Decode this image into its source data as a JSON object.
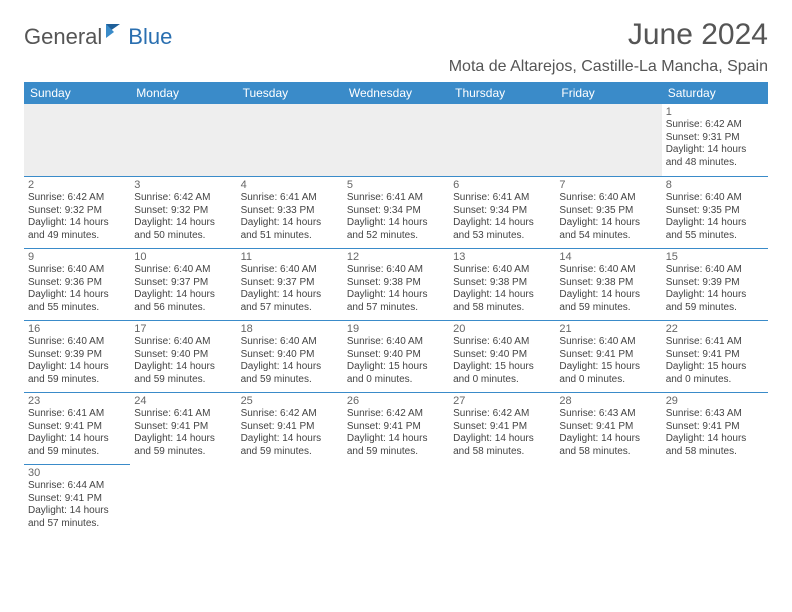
{
  "logo": {
    "general": "General",
    "blue": "Blue"
  },
  "title": "June 2024",
  "location": "Mota de Altarejos, Castille-La Mancha, Spain",
  "header_bg": "#3a8bc9",
  "header_fg": "#ffffff",
  "day_border": "#3a8bc9",
  "weekdays": [
    "Sunday",
    "Monday",
    "Tuesday",
    "Wednesday",
    "Thursday",
    "Friday",
    "Saturday"
  ],
  "days": {
    "1": {
      "sunrise": "6:42 AM",
      "sunset": "9:31 PM",
      "daylight": "14 hours and 48 minutes."
    },
    "2": {
      "sunrise": "6:42 AM",
      "sunset": "9:32 PM",
      "daylight": "14 hours and 49 minutes."
    },
    "3": {
      "sunrise": "6:42 AM",
      "sunset": "9:32 PM",
      "daylight": "14 hours and 50 minutes."
    },
    "4": {
      "sunrise": "6:41 AM",
      "sunset": "9:33 PM",
      "daylight": "14 hours and 51 minutes."
    },
    "5": {
      "sunrise": "6:41 AM",
      "sunset": "9:34 PM",
      "daylight": "14 hours and 52 minutes."
    },
    "6": {
      "sunrise": "6:41 AM",
      "sunset": "9:34 PM",
      "daylight": "14 hours and 53 minutes."
    },
    "7": {
      "sunrise": "6:40 AM",
      "sunset": "9:35 PM",
      "daylight": "14 hours and 54 minutes."
    },
    "8": {
      "sunrise": "6:40 AM",
      "sunset": "9:35 PM",
      "daylight": "14 hours and 55 minutes."
    },
    "9": {
      "sunrise": "6:40 AM",
      "sunset": "9:36 PM",
      "daylight": "14 hours and 55 minutes."
    },
    "10": {
      "sunrise": "6:40 AM",
      "sunset": "9:37 PM",
      "daylight": "14 hours and 56 minutes."
    },
    "11": {
      "sunrise": "6:40 AM",
      "sunset": "9:37 PM",
      "daylight": "14 hours and 57 minutes."
    },
    "12": {
      "sunrise": "6:40 AM",
      "sunset": "9:38 PM",
      "daylight": "14 hours and 57 minutes."
    },
    "13": {
      "sunrise": "6:40 AM",
      "sunset": "9:38 PM",
      "daylight": "14 hours and 58 minutes."
    },
    "14": {
      "sunrise": "6:40 AM",
      "sunset": "9:38 PM",
      "daylight": "14 hours and 59 minutes."
    },
    "15": {
      "sunrise": "6:40 AM",
      "sunset": "9:39 PM",
      "daylight": "14 hours and 59 minutes."
    },
    "16": {
      "sunrise": "6:40 AM",
      "sunset": "9:39 PM",
      "daylight": "14 hours and 59 minutes."
    },
    "17": {
      "sunrise": "6:40 AM",
      "sunset": "9:40 PM",
      "daylight": "14 hours and 59 minutes."
    },
    "18": {
      "sunrise": "6:40 AM",
      "sunset": "9:40 PM",
      "daylight": "14 hours and 59 minutes."
    },
    "19": {
      "sunrise": "6:40 AM",
      "sunset": "9:40 PM",
      "daylight": "15 hours and 0 minutes."
    },
    "20": {
      "sunrise": "6:40 AM",
      "sunset": "9:40 PM",
      "daylight": "15 hours and 0 minutes."
    },
    "21": {
      "sunrise": "6:40 AM",
      "sunset": "9:41 PM",
      "daylight": "15 hours and 0 minutes."
    },
    "22": {
      "sunrise": "6:41 AM",
      "sunset": "9:41 PM",
      "daylight": "15 hours and 0 minutes."
    },
    "23": {
      "sunrise": "6:41 AM",
      "sunset": "9:41 PM",
      "daylight": "14 hours and 59 minutes."
    },
    "24": {
      "sunrise": "6:41 AM",
      "sunset": "9:41 PM",
      "daylight": "14 hours and 59 minutes."
    },
    "25": {
      "sunrise": "6:42 AM",
      "sunset": "9:41 PM",
      "daylight": "14 hours and 59 minutes."
    },
    "26": {
      "sunrise": "6:42 AM",
      "sunset": "9:41 PM",
      "daylight": "14 hours and 59 minutes."
    },
    "27": {
      "sunrise": "6:42 AM",
      "sunset": "9:41 PM",
      "daylight": "14 hours and 58 minutes."
    },
    "28": {
      "sunrise": "6:43 AM",
      "sunset": "9:41 PM",
      "daylight": "14 hours and 58 minutes."
    },
    "29": {
      "sunrise": "6:43 AM",
      "sunset": "9:41 PM",
      "daylight": "14 hours and 58 minutes."
    },
    "30": {
      "sunrise": "6:44 AM",
      "sunset": "9:41 PM",
      "daylight": "14 hours and 57 minutes."
    }
  },
  "labels": {
    "sunrise": "Sunrise:",
    "sunset": "Sunset:",
    "daylight": "Daylight:"
  },
  "layout": {
    "first_day_column": 6,
    "num_days": 30
  }
}
